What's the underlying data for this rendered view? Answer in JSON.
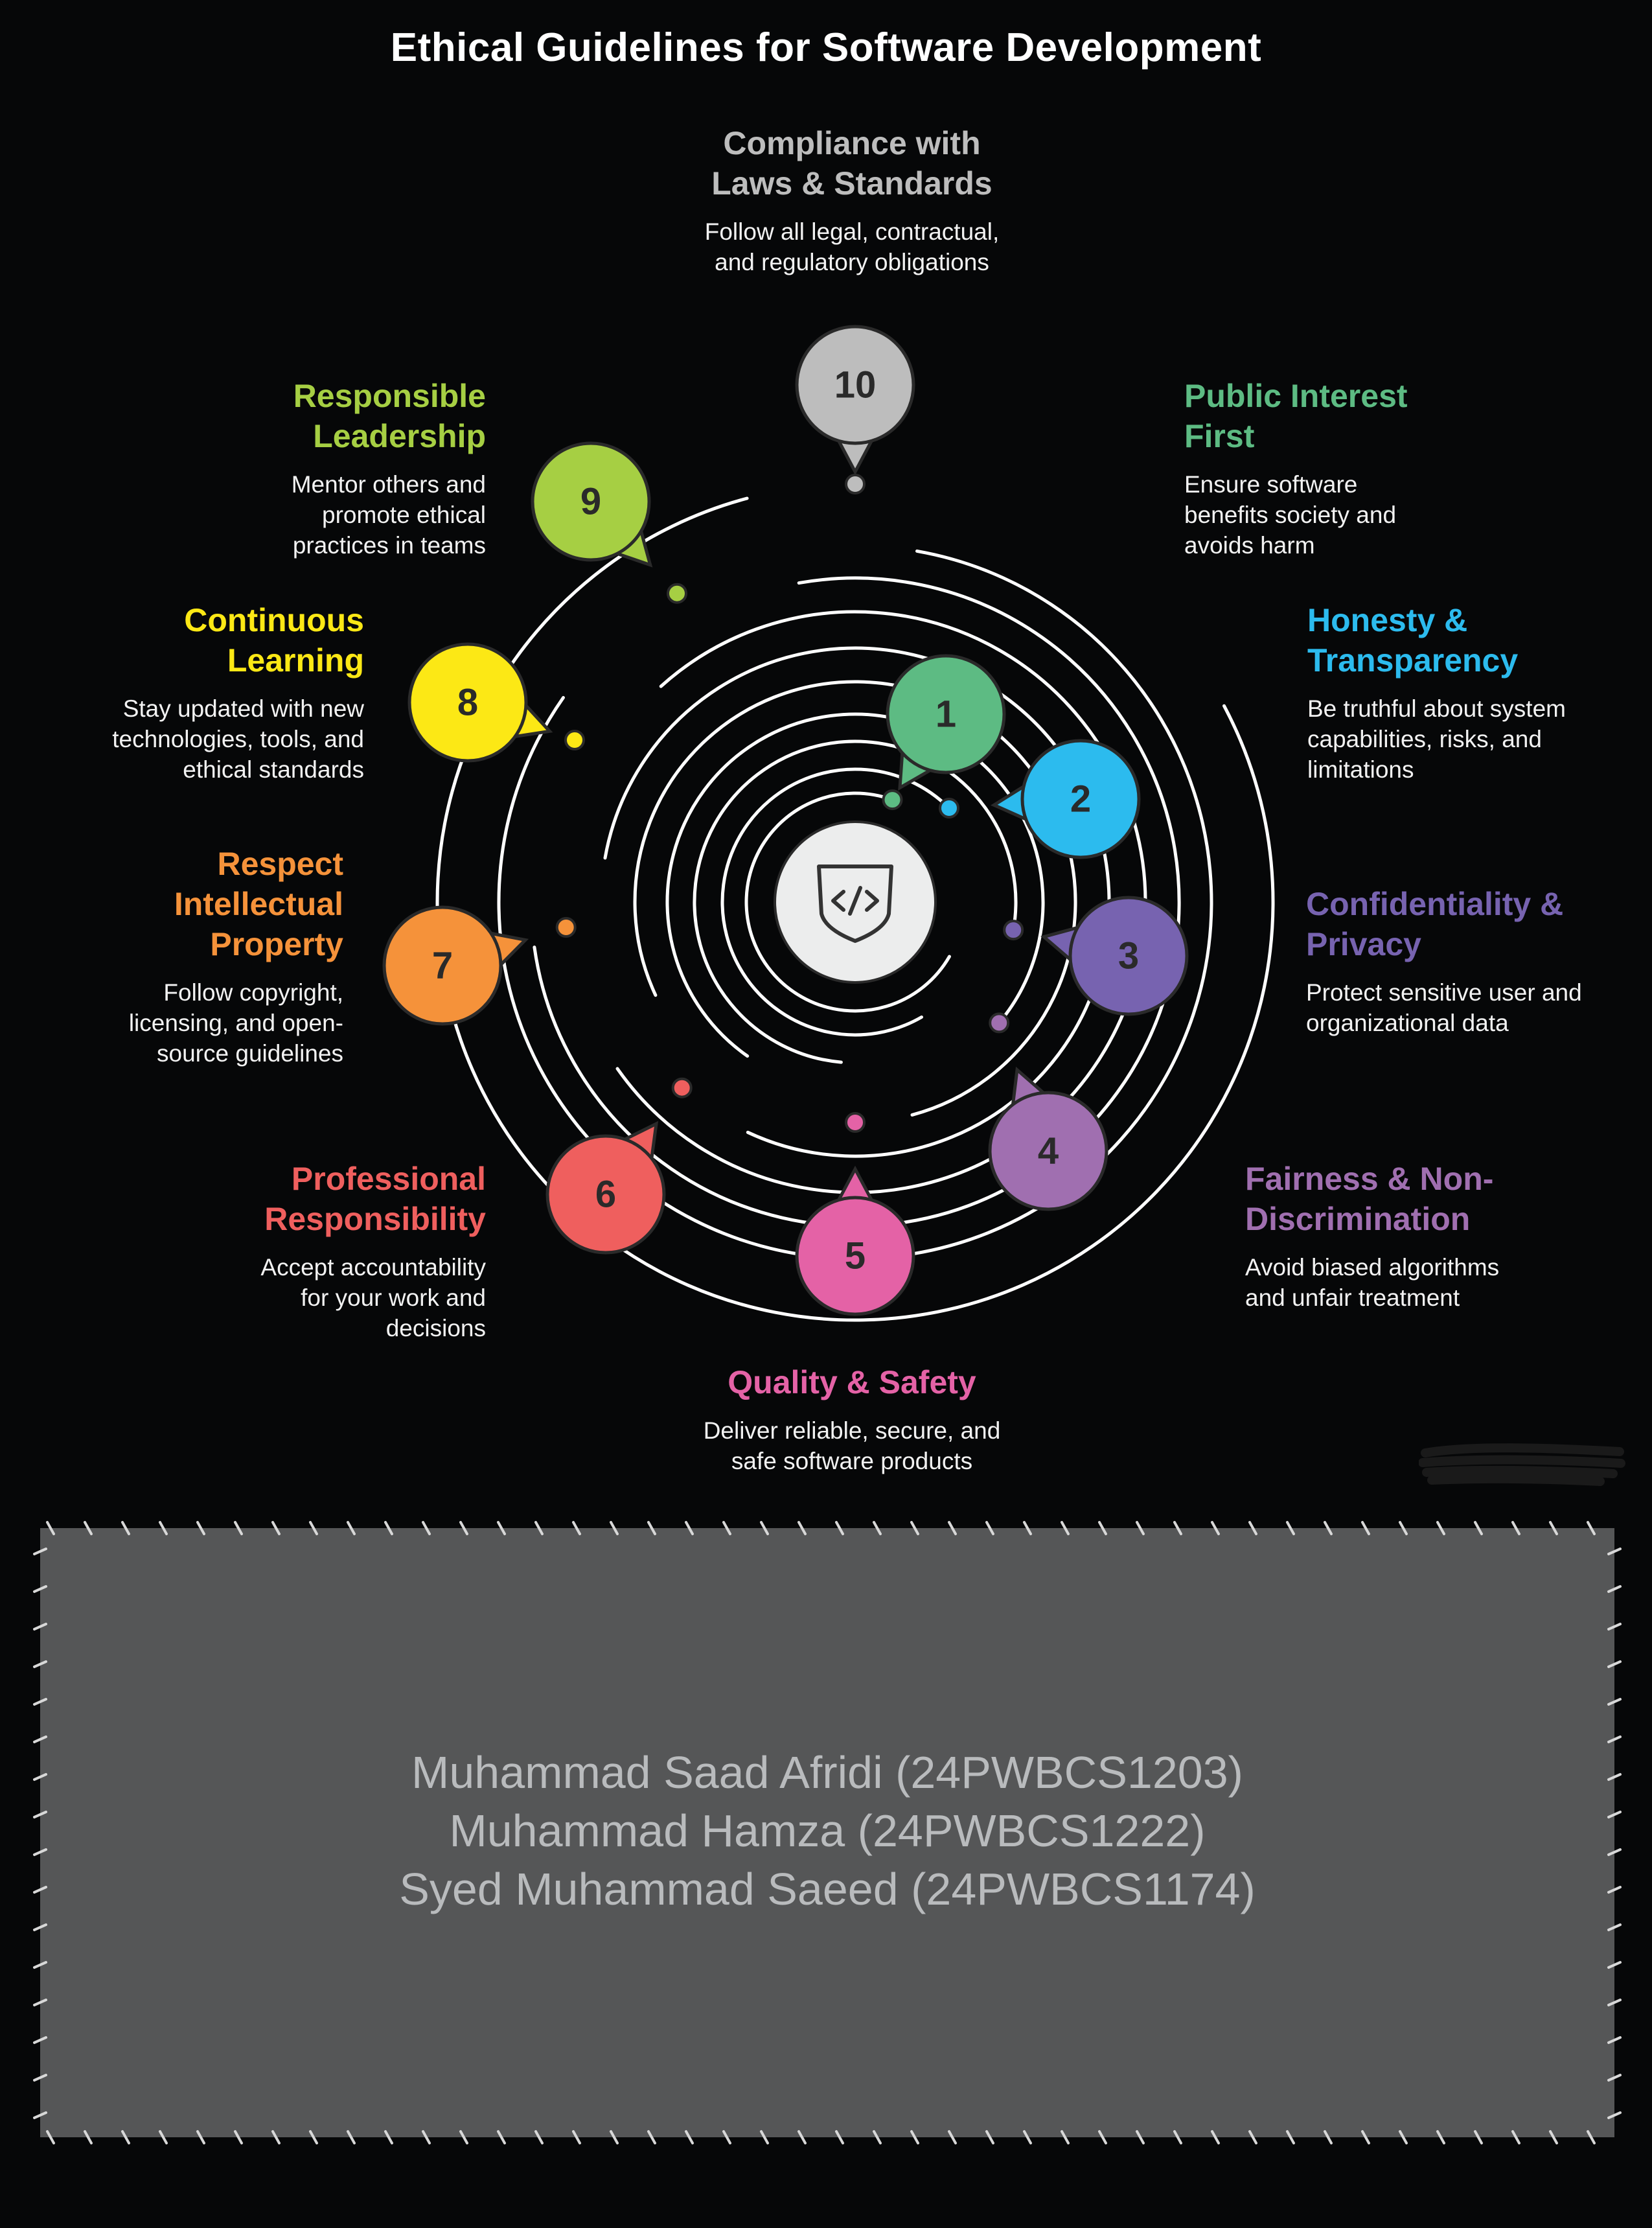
{
  "title": "Ethical Guidelines for Software Development",
  "colors": {
    "background": "#060708",
    "ring": "#ffffff",
    "center_circle": "#eceded",
    "names_box": "#555657",
    "names_text": "#b9bbbd"
  },
  "center_icon": "code-shield-icon",
  "guidelines": [
    {
      "number": "1",
      "heading": "Public Interest First",
      "description": "Ensure software benefits society and avoids harm",
      "color": "#5dbb83"
    },
    {
      "number": "2",
      "heading": "Honesty & Transparency",
      "description": "Be truthful about system capabilities, risks, and limitations",
      "color": "#2cbbee"
    },
    {
      "number": "3",
      "heading": "Confidentiality & Privacy",
      "description": "Protect sensitive user and organizational data",
      "color": "#7763b0"
    },
    {
      "number": "4",
      "heading": "Fairness & Non-Discrimination",
      "description": "Avoid biased algorithms and unfair treatment",
      "color": "#a06fb0"
    },
    {
      "number": "5",
      "heading": "Quality & Safety",
      "description": "Deliver reliable, secure, and safe software products",
      "color": "#e462a6"
    },
    {
      "number": "6",
      "heading": "Professional Responsibility",
      "description": "Accept accountability for your work and decisions",
      "color": "#ef5f5e"
    },
    {
      "number": "7",
      "heading": "Respect Intellectual Property",
      "description": "Follow copyright, licensing, and open-source guidelines",
      "color": "#f5923a"
    },
    {
      "number": "8",
      "heading": "Continuous Learning",
      "description": "Stay updated with new technologies, tools, and ethical standards",
      "color": "#fce815"
    },
    {
      "number": "9",
      "heading": "Responsible Leadership",
      "description": "Mentor others and promote ethical practices in teams",
      "color": "#a6cf43"
    },
    {
      "number": "10",
      "heading": "Compliance with Laws & Standards",
      "description": "Follow all legal, contractual, and regulatory obligations",
      "color": "#bdbdbd"
    }
  ],
  "members": [
    "Muhammad Saad Afridi (24PWBCS1203)",
    "Muhammad Hamza (24PWBCS1222)",
    "Syed Muhammad Saeed (24PWBCS1174)"
  ]
}
